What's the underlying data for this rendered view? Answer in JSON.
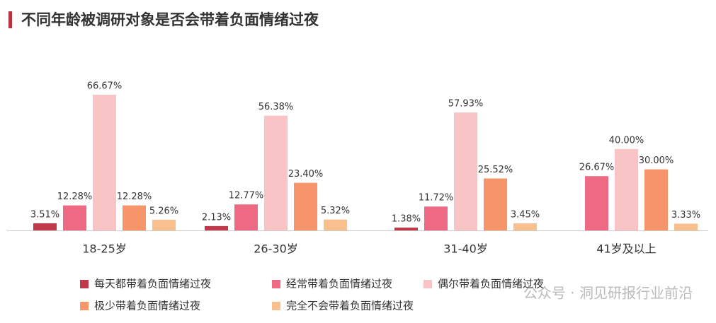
{
  "chart_data": {
    "type": "bar",
    "title": "不同年龄被调研对象是否会带着负面情绪过夜",
    "categories": [
      "18-25岁",
      "26-30岁",
      "31-40岁",
      "41岁及以上"
    ],
    "series": [
      {
        "name": "每天都带着负面情绪过夜",
        "color": "#c0394a",
        "values": [
          3.51,
          2.13,
          1.38,
          null
        ],
        "value_labels": [
          "3.51%",
          "2.13%",
          "1.38%",
          null
        ]
      },
      {
        "name": "经常带着负面情绪过夜",
        "color": "#ee6a84",
        "values": [
          12.28,
          12.77,
          11.72,
          26.67
        ],
        "value_labels": [
          "12.28%",
          "12.77%",
          "11.72%",
          "26.67%"
        ]
      },
      {
        "name": "偶尔带着负面情绪过夜",
        "color": "#f9c4c6",
        "values": [
          66.67,
          56.38,
          57.93,
          40
        ],
        "value_labels": [
          "66.67%",
          "56.38%",
          "57.93%",
          "40.00%"
        ]
      },
      {
        "name": "极少带着负面情绪过夜",
        "color": "#f7956a",
        "values": [
          12.28,
          23.4,
          25.52,
          30
        ],
        "value_labels": [
          "12.28%",
          "23.40%",
          "25.52%",
          "30.00%"
        ]
      },
      {
        "name": "完全不会带着负面情绪过夜",
        "color": "#f9c08e",
        "values": [
          5.26,
          5.32,
          3.45,
          3.33
        ],
        "value_labels": [
          "5.26%",
          "5.32%",
          "3.45%",
          "3.33%"
        ]
      }
    ],
    "watermark": "公众号 · 洞见研报行业前沿"
  }
}
